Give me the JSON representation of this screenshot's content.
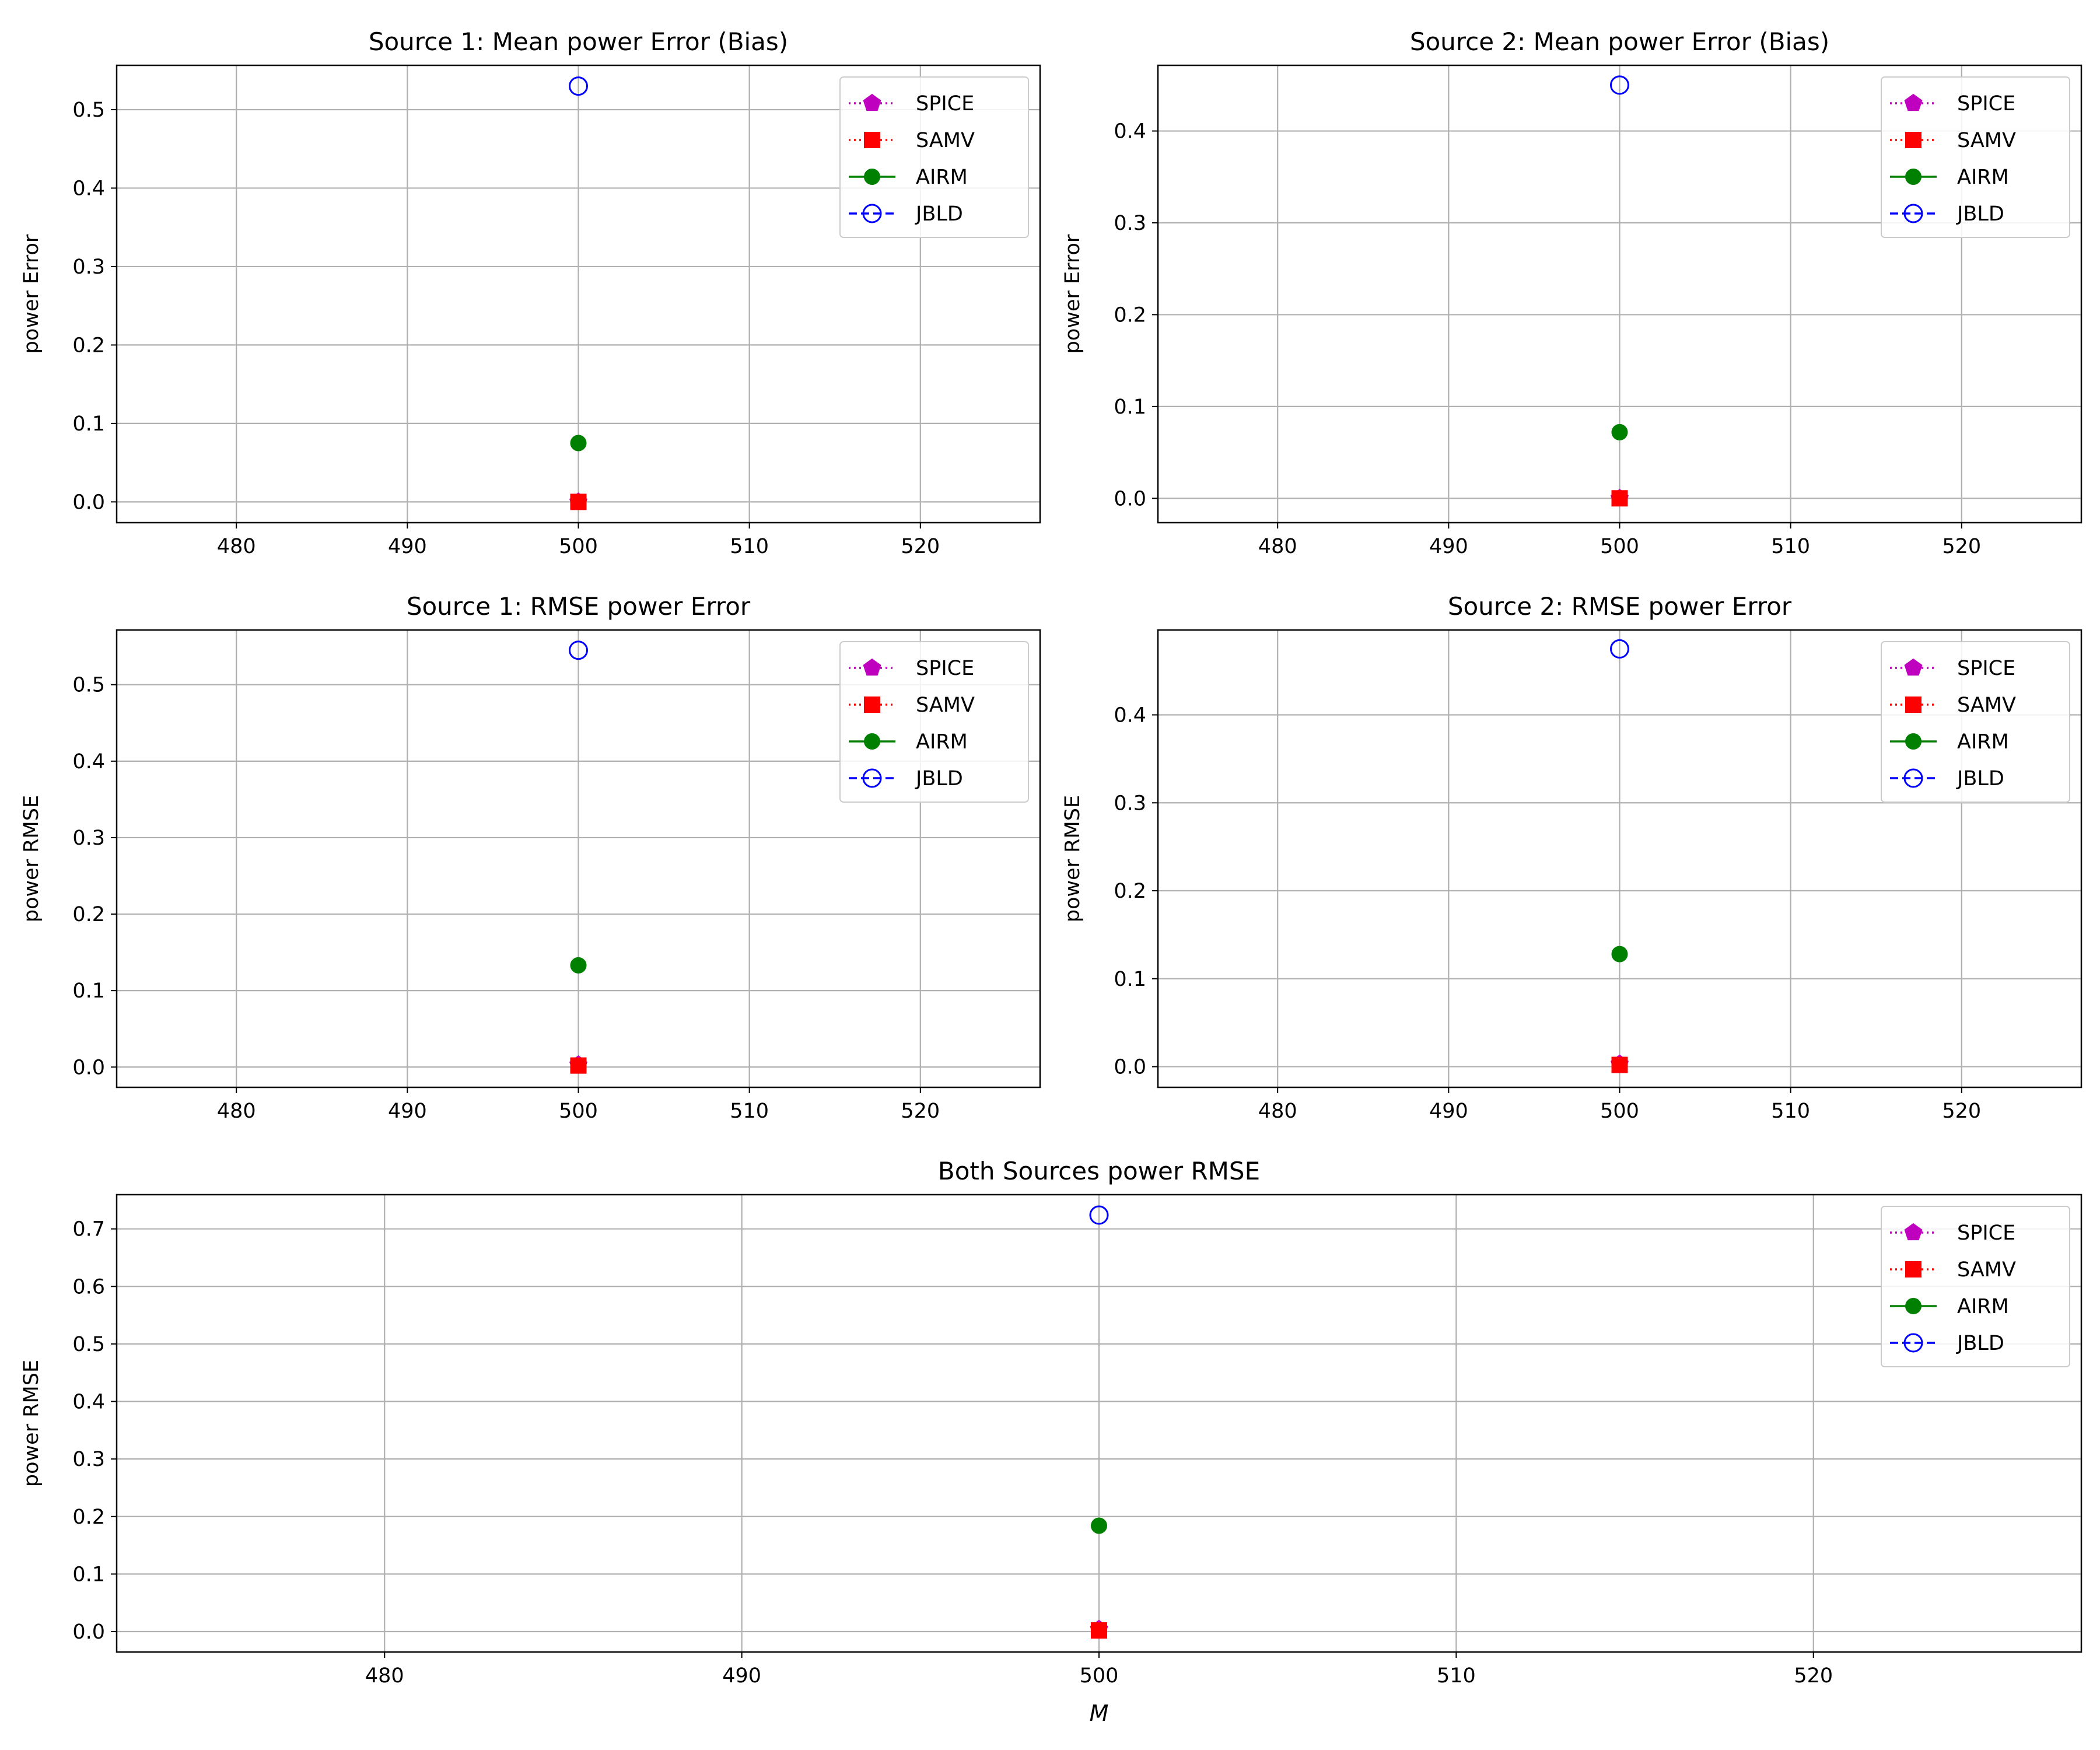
{
  "chart_data": [
    {
      "type": "scatter",
      "title": "Source 1: Mean power Error (Bias)",
      "xlabel": "",
      "ylabel": "power Error",
      "xlim": [
        473,
        527
      ],
      "ylim": [
        -0.0265,
        0.5565
      ],
      "xticks": [
        480,
        490,
        500,
        510,
        520
      ],
      "yticks": [
        0.0,
        0.1,
        0.2,
        0.3,
        0.4,
        0.5
      ],
      "xticklabels": [
        "480",
        "490",
        "500",
        "510",
        "520"
      ],
      "yticklabels": [
        "0.0",
        "0.1",
        "0.2",
        "0.3",
        "0.4",
        "0.5"
      ],
      "grid": true,
      "legend_position": "upper right",
      "series": [
        {
          "name": "SPICE",
          "color": "#bf00bf",
          "marker": "pentagon",
          "line": "dotted",
          "x": [
            500
          ],
          "y": [
            0.0
          ]
        },
        {
          "name": "SAMV",
          "color": "#ff0000",
          "marker": "square",
          "line": "dotted",
          "x": [
            500
          ],
          "y": [
            0.0
          ]
        },
        {
          "name": "AIRM",
          "color": "#008000",
          "marker": "circle",
          "line": "solid",
          "x": [
            500
          ],
          "y": [
            0.075
          ]
        },
        {
          "name": "JBLD",
          "color": "#0000ff",
          "marker": "open-circle",
          "line": "dashed",
          "x": [
            500
          ],
          "y": [
            0.53
          ]
        }
      ]
    },
    {
      "type": "scatter",
      "title": "Source 2: Mean power Error (Bias)",
      "xlabel": "",
      "ylabel": "power Error",
      "xlim": [
        473,
        527
      ],
      "ylim": [
        -0.0265,
        0.4715
      ],
      "xticks": [
        480,
        490,
        500,
        510,
        520
      ],
      "yticks": [
        0.0,
        0.1,
        0.2,
        0.3,
        0.4
      ],
      "xticklabels": [
        "480",
        "490",
        "500",
        "510",
        "520"
      ],
      "yticklabels": [
        "0.0",
        "0.1",
        "0.2",
        "0.3",
        "0.4"
      ],
      "grid": true,
      "legend_position": "upper right",
      "series": [
        {
          "name": "SPICE",
          "color": "#bf00bf",
          "marker": "pentagon",
          "line": "dotted",
          "x": [
            500
          ],
          "y": [
            0.0
          ]
        },
        {
          "name": "SAMV",
          "color": "#ff0000",
          "marker": "square",
          "line": "dotted",
          "x": [
            500
          ],
          "y": [
            0.0
          ]
        },
        {
          "name": "AIRM",
          "color": "#008000",
          "marker": "circle",
          "line": "solid",
          "x": [
            500
          ],
          "y": [
            0.072
          ]
        },
        {
          "name": "JBLD",
          "color": "#0000ff",
          "marker": "open-circle",
          "line": "dashed",
          "x": [
            500
          ],
          "y": [
            0.45
          ]
        }
      ]
    },
    {
      "type": "scatter",
      "title": "Source 1: RMSE power Error",
      "xlabel": "",
      "ylabel": "power RMSE",
      "xlim": [
        473,
        527
      ],
      "ylim": [
        -0.0265,
        0.5715
      ],
      "xticks": [
        480,
        490,
        500,
        510,
        520
      ],
      "yticks": [
        0.0,
        0.1,
        0.2,
        0.3,
        0.4,
        0.5
      ],
      "xticklabels": [
        "480",
        "490",
        "500",
        "510",
        "520"
      ],
      "yticklabels": [
        "0.0",
        "0.1",
        "0.2",
        "0.3",
        "0.4",
        "0.5"
      ],
      "grid": true,
      "legend_position": "upper right",
      "series": [
        {
          "name": "SPICE",
          "color": "#bf00bf",
          "marker": "pentagon",
          "line": "dotted",
          "x": [
            500
          ],
          "y": [
            0.003
          ]
        },
        {
          "name": "SAMV",
          "color": "#ff0000",
          "marker": "square",
          "line": "dotted",
          "x": [
            500
          ],
          "y": [
            0.002
          ]
        },
        {
          "name": "AIRM",
          "color": "#008000",
          "marker": "circle",
          "line": "solid",
          "x": [
            500
          ],
          "y": [
            0.133
          ]
        },
        {
          "name": "JBLD",
          "color": "#0000ff",
          "marker": "open-circle",
          "line": "dashed",
          "x": [
            500
          ],
          "y": [
            0.545
          ]
        }
      ]
    },
    {
      "type": "scatter",
      "title": "Source 2: RMSE power Error",
      "xlabel": "",
      "ylabel": "power RMSE",
      "xlim": [
        473,
        527
      ],
      "ylim": [
        -0.0235,
        0.4965
      ],
      "xticks": [
        480,
        490,
        500,
        510,
        520
      ],
      "yticks": [
        0.0,
        0.1,
        0.2,
        0.3,
        0.4
      ],
      "xticklabels": [
        "480",
        "490",
        "500",
        "510",
        "520"
      ],
      "yticklabels": [
        "0.0",
        "0.1",
        "0.2",
        "0.3",
        "0.4"
      ],
      "grid": true,
      "legend_position": "upper right",
      "series": [
        {
          "name": "SPICE",
          "color": "#bf00bf",
          "marker": "pentagon",
          "line": "dotted",
          "x": [
            500
          ],
          "y": [
            0.003
          ]
        },
        {
          "name": "SAMV",
          "color": "#ff0000",
          "marker": "square",
          "line": "dotted",
          "x": [
            500
          ],
          "y": [
            0.002
          ]
        },
        {
          "name": "AIRM",
          "color": "#008000",
          "marker": "circle",
          "line": "solid",
          "x": [
            500
          ],
          "y": [
            0.128
          ]
        },
        {
          "name": "JBLD",
          "color": "#0000ff",
          "marker": "open-circle",
          "line": "dashed",
          "x": [
            500
          ],
          "y": [
            0.475
          ]
        }
      ]
    },
    {
      "type": "scatter",
      "title": "Both Sources power RMSE",
      "xlabel": "M",
      "ylabel": "power RMSE",
      "xlim": [
        472.5,
        527.5
      ],
      "ylim": [
        -0.0355,
        0.7595
      ],
      "xticks": [
        480,
        490,
        500,
        510,
        520
      ],
      "yticks": [
        0.0,
        0.1,
        0.2,
        0.3,
        0.4,
        0.5,
        0.6,
        0.7
      ],
      "xticklabels": [
        "480",
        "490",
        "500",
        "510",
        "520"
      ],
      "yticklabels": [
        "0.0",
        "0.1",
        "0.2",
        "0.3",
        "0.4",
        "0.5",
        "0.6",
        "0.7"
      ],
      "grid": true,
      "legend_position": "upper right",
      "series": [
        {
          "name": "SPICE",
          "color": "#bf00bf",
          "marker": "pentagon",
          "line": "dotted",
          "x": [
            500
          ],
          "y": [
            0.004
          ]
        },
        {
          "name": "SAMV",
          "color": "#ff0000",
          "marker": "square",
          "line": "dotted",
          "x": [
            500
          ],
          "y": [
            0.002
          ]
        },
        {
          "name": "AIRM",
          "color": "#008000",
          "marker": "circle",
          "line": "solid",
          "x": [
            500
          ],
          "y": [
            0.184
          ]
        },
        {
          "name": "JBLD",
          "color": "#0000ff",
          "marker": "open-circle",
          "line": "dashed",
          "x": [
            500
          ],
          "y": [
            0.724
          ]
        }
      ]
    }
  ]
}
